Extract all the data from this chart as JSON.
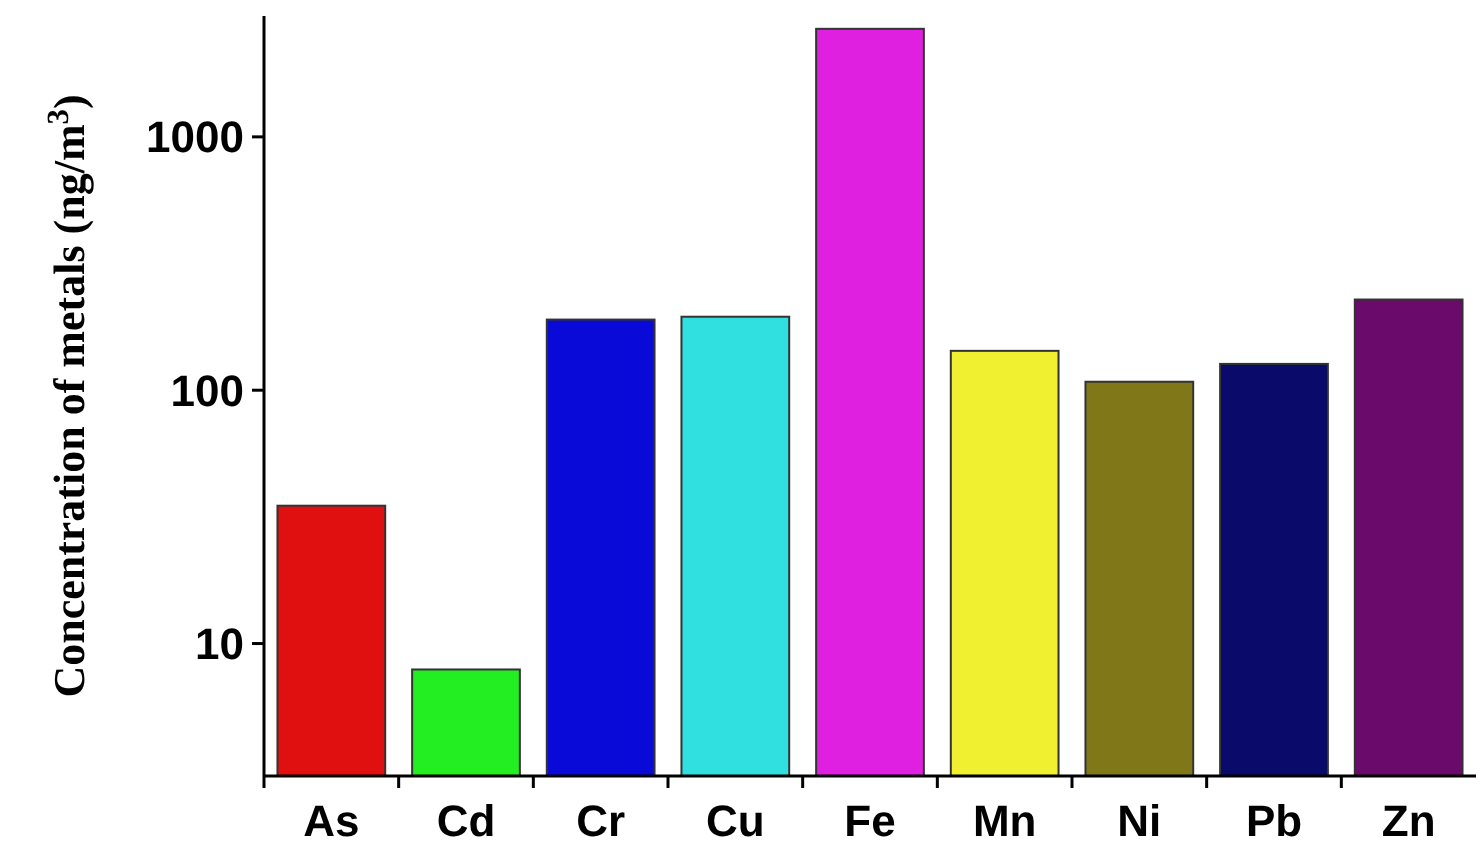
{
  "chart_data": {
    "type": "bar",
    "ylabel": "Concentration of metals (ng/m$^{3}$)",
    "categories": [
      "As",
      "Cd",
      "Cr",
      "Cu",
      "Fe",
      "Mn",
      "Ni",
      "Pb",
      "Zn"
    ],
    "values": [
      35,
      7.9,
      190,
      195,
      2670,
      143,
      108,
      127,
      228
    ],
    "colors": [
      "#e01010",
      "#22ee22",
      "#0a0ad8",
      "#30e0e0",
      "#e020e0",
      "#f0f030",
      "#807818",
      "#0a0a6a",
      "#6a0a6a"
    ],
    "log": true,
    "ylim": [
      3,
      3000
    ],
    "yticks": [
      10,
      100,
      1000
    ],
    "grid": false
  }
}
